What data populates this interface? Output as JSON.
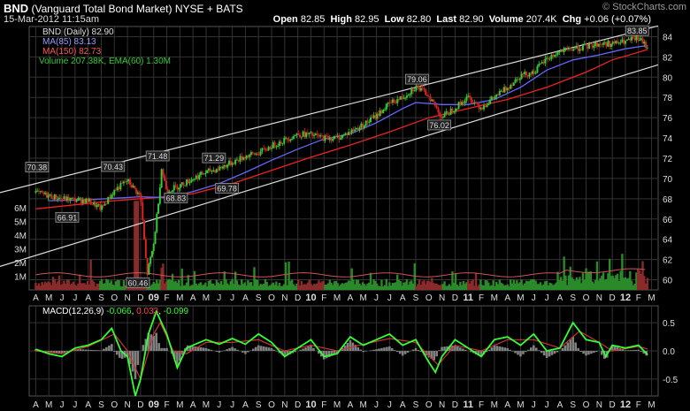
{
  "header": {
    "symbol": "BND",
    "name": "(Vanguard Total Bond Market)",
    "exchange": "NYSE + BATS",
    "date": "15-Mar-2012 11:15am",
    "watermark": "© StockCharts.com",
    "open_label": "Open",
    "open": "82.85",
    "high_label": "High",
    "high": "82.95",
    "low_label": "Low",
    "low": "82.80",
    "last_label": "Last",
    "last": "82.90",
    "volume_label": "Volume",
    "volume": "207.4K",
    "chg_label": "Chg",
    "chg": "+0.06 (+0.07%)"
  },
  "legend": {
    "price": "BND (Daily) 82.90",
    "ma85": "MA(85) 83.13",
    "ma150": "MA(150) 82.73",
    "volume": "Volume 207.38K, EMA(60) 1.30M",
    "macd_name": "MACD(12,26,9)",
    "macd_a": "-0.066",
    "macd_b": "0.033",
    "macd_c": "-0.099"
  },
  "colors": {
    "up": "#33cc33",
    "down": "#dd2222",
    "ma85": "#6666ff",
    "ma150": "#ee2222",
    "macd": "#33ff33",
    "signal": "#cc3333",
    "hist": "#808080",
    "grid": "#333333",
    "channel": "#dddddd"
  },
  "chart_data": {
    "type": "line",
    "price_axis": {
      "range": [
        59,
        85
      ],
      "ticks": [
        60,
        62,
        64,
        66,
        68,
        70,
        72,
        74,
        76,
        78,
        80,
        82,
        84
      ]
    },
    "volume_axis": {
      "ticks": [
        "1M",
        "2M",
        "3M",
        "4M",
        "5M",
        "6M"
      ],
      "values": [
        1,
        2,
        3,
        4,
        5,
        6
      ]
    },
    "macd_axis": {
      "range": [
        -0.8,
        0.8
      ],
      "ticks": [
        "0.5",
        "0.0",
        "-0.5"
      ],
      "values": [
        0.5,
        0,
        -0.5
      ]
    },
    "months": [
      "A",
      "M",
      "J",
      "J",
      "A",
      "S",
      "O",
      "N",
      "D",
      "09",
      "F",
      "M",
      "A",
      "M",
      "J",
      "J",
      "A",
      "S",
      "O",
      "N",
      "D",
      "10",
      "F",
      "M",
      "A",
      "M",
      "J",
      "J",
      "A",
      "S",
      "O",
      "N",
      "D",
      "11",
      "F",
      "M",
      "A",
      "M",
      "J",
      "J",
      "A",
      "S",
      "O",
      "N",
      "D",
      "12",
      "F",
      "M"
    ],
    "price_path": [
      [
        0,
        68.6
      ],
      [
        2,
        68.0
      ],
      [
        4,
        67.8
      ],
      [
        5,
        67.0
      ],
      [
        6,
        68.8
      ],
      [
        7,
        69.8
      ],
      [
        8,
        68.2
      ],
      [
        8.5,
        60.5
      ],
      [
        9,
        63.5
      ],
      [
        9.3,
        67.0
      ],
      [
        9.6,
        71.0
      ],
      [
        10,
        68.8
      ],
      [
        11,
        69.3
      ],
      [
        12,
        70.0
      ],
      [
        13,
        70.6
      ],
      [
        14,
        71.0
      ],
      [
        15,
        71.6
      ],
      [
        16,
        72.2
      ],
      [
        17,
        72.5
      ],
      [
        18,
        73.2
      ],
      [
        19,
        73.8
      ],
      [
        20,
        74.4
      ],
      [
        21,
        74.3
      ],
      [
        22,
        74.0
      ],
      [
        23,
        74.0
      ],
      [
        24,
        74.6
      ],
      [
        25,
        75.3
      ],
      [
        26,
        76.2
      ],
      [
        27,
        77.4
      ],
      [
        28,
        78.0
      ],
      [
        29,
        79.06
      ],
      [
        30,
        78.2
      ],
      [
        31,
        76.02
      ],
      [
        32,
        77.0
      ],
      [
        33,
        78.0
      ],
      [
        34,
        77.0
      ],
      [
        35,
        78.0
      ],
      [
        36,
        79.0
      ],
      [
        37,
        80.2
      ],
      [
        38,
        80.5
      ],
      [
        39,
        81.8
      ],
      [
        40,
        82.5
      ],
      [
        41,
        82.8
      ],
      [
        42,
        83.0
      ],
      [
        43,
        83.3
      ],
      [
        44,
        83.3
      ],
      [
        45,
        83.5
      ],
      [
        46,
        83.85
      ],
      [
        46.7,
        82.9
      ]
    ],
    "ma85_path": [
      [
        1,
        67.8
      ],
      [
        4,
        67.9
      ],
      [
        8,
        68.2
      ],
      [
        10,
        68.1
      ],
      [
        12,
        68.7
      ],
      [
        14,
        69.5
      ],
      [
        16,
        70.6
      ],
      [
        18,
        71.8
      ],
      [
        20,
        72.9
      ],
      [
        22,
        73.9
      ],
      [
        24,
        74.4
      ],
      [
        26,
        75.5
      ],
      [
        28,
        76.9
      ],
      [
        29,
        77.5
      ],
      [
        31,
        77.3
      ],
      [
        33,
        77.3
      ],
      [
        35,
        77.8
      ],
      [
        37,
        79.0
      ],
      [
        39,
        80.7
      ],
      [
        41,
        81.7
      ],
      [
        43,
        82.2
      ],
      [
        45,
        82.8
      ],
      [
        46.7,
        83.13
      ]
    ],
    "ma150_path": [
      [
        0,
        67.0
      ],
      [
        3,
        67.4
      ],
      [
        6,
        67.8
      ],
      [
        9,
        68.1
      ],
      [
        12,
        68.5
      ],
      [
        15,
        69.5
      ],
      [
        18,
        70.8
      ],
      [
        21,
        72.1
      ],
      [
        24,
        73.3
      ],
      [
        27,
        74.6
      ],
      [
        30,
        76.0
      ],
      [
        33,
        76.9
      ],
      [
        36,
        77.8
      ],
      [
        39,
        79.0
      ],
      [
        42,
        80.5
      ],
      [
        44,
        81.7
      ],
      [
        46.7,
        82.73
      ]
    ],
    "channel_lines": [
      {
        "from": [
          0,
          69.5
        ],
        "to": [
          46.7,
          84.8
        ]
      },
      {
        "from": [
          0,
          62.4
        ],
        "to": [
          46.7,
          80.9
        ]
      }
    ],
    "annotations": [
      {
        "label": "70.38",
        "x": 0.1,
        "y": 70.38,
        "pos": "above"
      },
      {
        "label": "66.91",
        "x": 2.4,
        "y": 66.91,
        "pos": "below"
      },
      {
        "label": "70.43",
        "x": 5.9,
        "y": 70.43,
        "pos": "above"
      },
      {
        "label": "60.46",
        "x": 7.8,
        "y": 60.46,
        "pos": "below"
      },
      {
        "label": "71.48",
        "x": 9.3,
        "y": 71.48,
        "pos": "above"
      },
      {
        "label": "68.83",
        "x": 10.7,
        "y": 68.83,
        "pos": "below"
      },
      {
        "label": "71.29",
        "x": 13.6,
        "y": 71.29,
        "pos": "above"
      },
      {
        "label": "69.78",
        "x": 14.6,
        "y": 69.78,
        "pos": "below"
      },
      {
        "label": "79.06",
        "x": 29.1,
        "y": 79.06,
        "pos": "above"
      },
      {
        "label": "76.02",
        "x": 30.8,
        "y": 76.02,
        "pos": "below"
      },
      {
        "label": "83.85",
        "x": 45.9,
        "y": 83.85,
        "pos": "above"
      }
    ],
    "macd_path": [
      [
        0,
        0.03
      ],
      [
        1,
        -0.05
      ],
      [
        2,
        -0.1
      ],
      [
        3,
        0.05
      ],
      [
        4,
        0.1
      ],
      [
        5,
        0.2
      ],
      [
        5.8,
        0.4
      ],
      [
        6.5,
        0.0
      ],
      [
        7,
        -0.1
      ],
      [
        7.6,
        -0.8
      ],
      [
        8,
        -0.5
      ],
      [
        8.6,
        0.3
      ],
      [
        9.2,
        0.7
      ],
      [
        10,
        0.3
      ],
      [
        10.8,
        -0.3
      ],
      [
        11.5,
        0.05
      ],
      [
        12,
        0.1
      ],
      [
        13,
        0.2
      ],
      [
        14,
        0.12
      ],
      [
        15,
        0.22
      ],
      [
        16,
        0.12
      ],
      [
        17,
        0.3
      ],
      [
        18,
        0.15
      ],
      [
        19,
        -0.1
      ],
      [
        20,
        0.05
      ],
      [
        21,
        0.2
      ],
      [
        22,
        -0.1
      ],
      [
        23,
        -0.05
      ],
      [
        24,
        0.25
      ],
      [
        25,
        0.1
      ],
      [
        26,
        0.2
      ],
      [
        27,
        0.3
      ],
      [
        28,
        0.1
      ],
      [
        29,
        0.2
      ],
      [
        30,
        -0.2
      ],
      [
        30.5,
        -0.38
      ],
      [
        31,
        -0.1
      ],
      [
        32,
        0.2
      ],
      [
        33,
        0.05
      ],
      [
        34,
        -0.1
      ],
      [
        35,
        0.2
      ],
      [
        36,
        0.25
      ],
      [
        37,
        0.1
      ],
      [
        38,
        0.3
      ],
      [
        39,
        0.0
      ],
      [
        40,
        0.05
      ],
      [
        41,
        0.5
      ],
      [
        42,
        0.2
      ],
      [
        43,
        0.15
      ],
      [
        43.5,
        -0.1
      ],
      [
        44,
        0.1
      ],
      [
        45,
        0.05
      ],
      [
        46,
        0.1
      ],
      [
        46.7,
        -0.07
      ]
    ],
    "signal_path": [
      [
        0,
        0.0
      ],
      [
        2,
        -0.05
      ],
      [
        4,
        0.08
      ],
      [
        6,
        0.3
      ],
      [
        7,
        0.0
      ],
      [
        8,
        -0.5
      ],
      [
        9,
        0.3
      ],
      [
        9.5,
        0.5
      ],
      [
        10.5,
        0.0
      ],
      [
        11.5,
        -0.05
      ],
      [
        13,
        0.15
      ],
      [
        15,
        0.15
      ],
      [
        17,
        0.2
      ],
      [
        19,
        0.0
      ],
      [
        21,
        0.1
      ],
      [
        23,
        0.0
      ],
      [
        25,
        0.12
      ],
      [
        27,
        0.22
      ],
      [
        29,
        0.15
      ],
      [
        30.7,
        -0.25
      ],
      [
        32,
        0.1
      ],
      [
        34,
        0.0
      ],
      [
        36,
        0.2
      ],
      [
        38,
        0.2
      ],
      [
        40,
        0.05
      ],
      [
        41.5,
        0.35
      ],
      [
        43,
        0.15
      ],
      [
        44,
        0.0
      ],
      [
        46,
        0.08
      ],
      [
        46.7,
        0.03
      ]
    ]
  }
}
